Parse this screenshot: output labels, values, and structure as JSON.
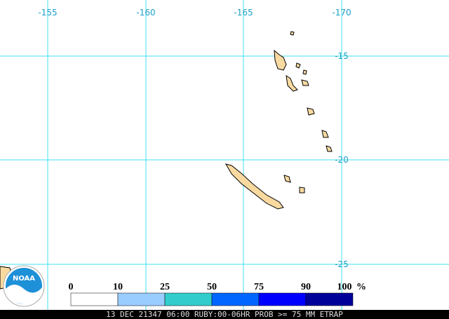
{
  "map": {
    "longitude_labels": [
      "-155",
      "-160",
      "-165",
      "-170"
    ],
    "latitude_labels": [
      "-15",
      "-20",
      "-25"
    ],
    "logo": "NOAA",
    "legend": {
      "bins": [
        {
          "color": "#ffffff"
        },
        {
          "color": "#99ccff"
        },
        {
          "color": "#33cccc"
        },
        {
          "color": "#0066ff"
        },
        {
          "color": "#0000ff"
        },
        {
          "color": "#000099"
        }
      ],
      "labels": [
        "0",
        "10",
        "25",
        "50",
        "75",
        "90",
        "100"
      ],
      "unit": "%"
    },
    "footer": "13 DEC 21347 06:00 RUBY:00-06HR PROB >= 75 MM ETRAP"
  }
}
